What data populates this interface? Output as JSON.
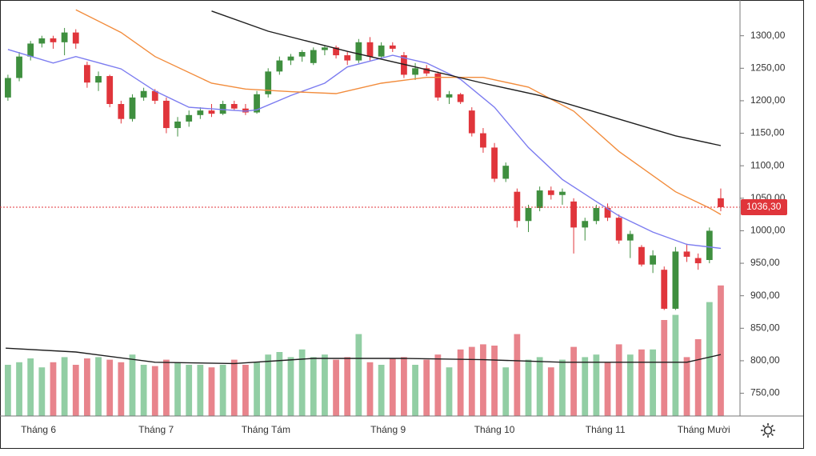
{
  "chart_data": {
    "type": "candlestick",
    "xlim": [
      -0.7,
      64.7
    ],
    "ylim": [
      715,
      1355
    ],
    "vlim": [
      0,
      300
    ],
    "yticks": [
      {
        "value": 1300,
        "label": "1300,00"
      },
      {
        "value": 1250,
        "label": "1250,00"
      },
      {
        "value": 1200,
        "label": "1200,00"
      },
      {
        "value": 1150,
        "label": "1150,00"
      },
      {
        "value": 1100,
        "label": "1100,00"
      },
      {
        "value": 1050,
        "label": "1050,00"
      },
      {
        "value": 1000,
        "label": "1000,00"
      },
      {
        "value": 950,
        "label": "950,00"
      },
      {
        "value": 900,
        "label": "900,00"
      },
      {
        "value": 850,
        "label": "850,00"
      },
      {
        "value": 800,
        "label": "800,00"
      },
      {
        "value": 750,
        "label": "750,00"
      }
    ],
    "xticks": [
      {
        "value": 2.7,
        "label": "Tháng 6"
      },
      {
        "value": 13.1,
        "label": "Tháng 7"
      },
      {
        "value": 22.8,
        "label": "Tháng Tám"
      },
      {
        "value": 33.6,
        "label": "Tháng 9"
      },
      {
        "value": 43,
        "label": "Tháng 10"
      },
      {
        "value": 52.8,
        "label": "Tháng 11"
      },
      {
        "value": 61.5,
        "label": "Tháng Mười"
      }
    ],
    "up_color": "#3f8f3f",
    "down_color": "#e0353b",
    "volume_up_color": "#92cea4",
    "volume_down_color": "#e8848c",
    "open": [
      1205,
      1235,
      1268,
      1288,
      1296,
      1290,
      1305,
      1255,
      1228,
      1238,
      1195,
      1172,
      1205,
      1215,
      1200,
      1158,
      1168,
      1178,
      1185,
      1180,
      1195,
      1188,
      1182,
      1210,
      1245,
      1262,
      1268,
      1258,
      1278,
      1282,
      1270,
      1262,
      1290,
      1268,
      1285,
      1270,
      1240,
      1250,
      1242,
      1205,
      1210,
      1185,
      1150,
      1128,
      1080,
      1060,
      1015,
      1035,
      1062,
      1055,
      1045,
      1005,
      1015,
      1035,
      1020,
      985,
      975,
      948,
      940,
      880,
      968,
      958,
      955,
      1050
    ],
    "high": [
      1240,
      1275,
      1292,
      1300,
      1300,
      1312,
      1310,
      1260,
      1245,
      1240,
      1200,
      1210,
      1220,
      1218,
      1205,
      1175,
      1185,
      1190,
      1195,
      1200,
      1200,
      1195,
      1215,
      1250,
      1268,
      1272,
      1278,
      1282,
      1285,
      1285,
      1275,
      1295,
      1298,
      1290,
      1290,
      1275,
      1258,
      1255,
      1245,
      1215,
      1212,
      1190,
      1158,
      1135,
      1105,
      1065,
      1040,
      1068,
      1068,
      1065,
      1050,
      1020,
      1040,
      1042,
      1025,
      1000,
      978,
      970,
      945,
      975,
      980,
      965,
      1005,
      1065
    ],
    "low": [
      1200,
      1230,
      1262,
      1282,
      1280,
      1270,
      1280,
      1220,
      1215,
      1190,
      1165,
      1168,
      1200,
      1195,
      1150,
      1145,
      1160,
      1172,
      1175,
      1178,
      1185,
      1178,
      1180,
      1205,
      1240,
      1255,
      1260,
      1255,
      1270,
      1265,
      1255,
      1258,
      1262,
      1265,
      1275,
      1235,
      1232,
      1238,
      1200,
      1195,
      1195,
      1145,
      1120,
      1075,
      1075,
      1005,
      998,
      1030,
      1048,
      1040,
      965,
      985,
      1010,
      1015,
      980,
      958,
      945,
      935,
      878,
      878,
      952,
      940,
      950,
      1030
    ],
    "close": [
      1235,
      1268,
      1288,
      1296,
      1290,
      1305,
      1288,
      1228,
      1238,
      1195,
      1172,
      1205,
      1215,
      1200,
      1158,
      1168,
      1178,
      1185,
      1180,
      1195,
      1188,
      1182,
      1210,
      1245,
      1262,
      1268,
      1275,
      1278,
      1282,
      1270,
      1262,
      1290,
      1268,
      1285,
      1280,
      1240,
      1250,
      1242,
      1205,
      1210,
      1198,
      1150,
      1128,
      1080,
      1100,
      1015,
      1035,
      1062,
      1055,
      1060,
      1005,
      1015,
      1035,
      1020,
      985,
      995,
      948,
      962,
      880,
      968,
      960,
      950,
      1000,
      1036.3
    ],
    "volume": [
      40,
      42,
      45,
      38,
      42,
      46,
      40,
      45,
      46,
      44,
      42,
      48,
      40,
      39,
      44,
      42,
      40,
      40,
      38,
      40,
      44,
      40,
      42,
      48,
      50,
      46,
      52,
      46,
      48,
      44,
      46,
      64,
      42,
      40,
      45,
      46,
      40,
      44,
      48,
      38,
      52,
      54,
      56,
      55,
      38,
      64,
      44,
      46,
      38,
      44,
      54,
      46,
      48,
      42,
      56,
      48,
      52,
      52,
      75,
      79,
      46,
      60,
      89,
      102
    ],
    "moving_averages": [
      {
        "color": "#7c7cf0",
        "x": [
          0,
          4,
          6,
          10,
          13,
          16,
          21,
          22,
          25,
          28,
          30,
          34,
          37,
          40,
          43,
          46,
          49,
          52,
          54,
          57,
          60,
          63
        ],
        "values": [
          1279,
          1258,
          1268,
          1249,
          1215,
          1190,
          1184,
          1186,
          1208,
          1227,
          1252,
          1270,
          1258,
          1233,
          1190,
          1128,
          1079,
          1045,
          1023,
          998,
          979,
          973
        ]
      },
      {
        "color": "#f28c3c",
        "x": [
          6,
          10,
          13,
          18,
          21,
          25,
          29,
          33,
          37,
          42,
          46,
          50,
          54,
          59,
          62,
          63
        ],
        "values": [
          1340,
          1305,
          1268,
          1227,
          1218,
          1214,
          1211,
          1227,
          1236,
          1236,
          1221,
          1184,
          1122,
          1060,
          1035,
          1025
        ]
      },
      {
        "color": "#1e1e1e",
        "x": [
          18,
          23,
          30,
          36,
          42,
          47,
          53,
          59,
          63
        ],
        "values": [
          1338,
          1307,
          1276,
          1252,
          1227,
          1208,
          1177,
          1146,
          1131
        ]
      }
    ],
    "volume_average": {
      "color": "#1e1e1e",
      "x": [
        -0.2,
        6,
        13,
        20,
        27,
        35,
        42,
        49,
        56,
        60,
        63
      ],
      "values": [
        53,
        50,
        42,
        41,
        45,
        45,
        44,
        42,
        42,
        42,
        48
      ]
    },
    "last_price": {
      "value": 1036.3,
      "label": "1036,30"
    }
  }
}
